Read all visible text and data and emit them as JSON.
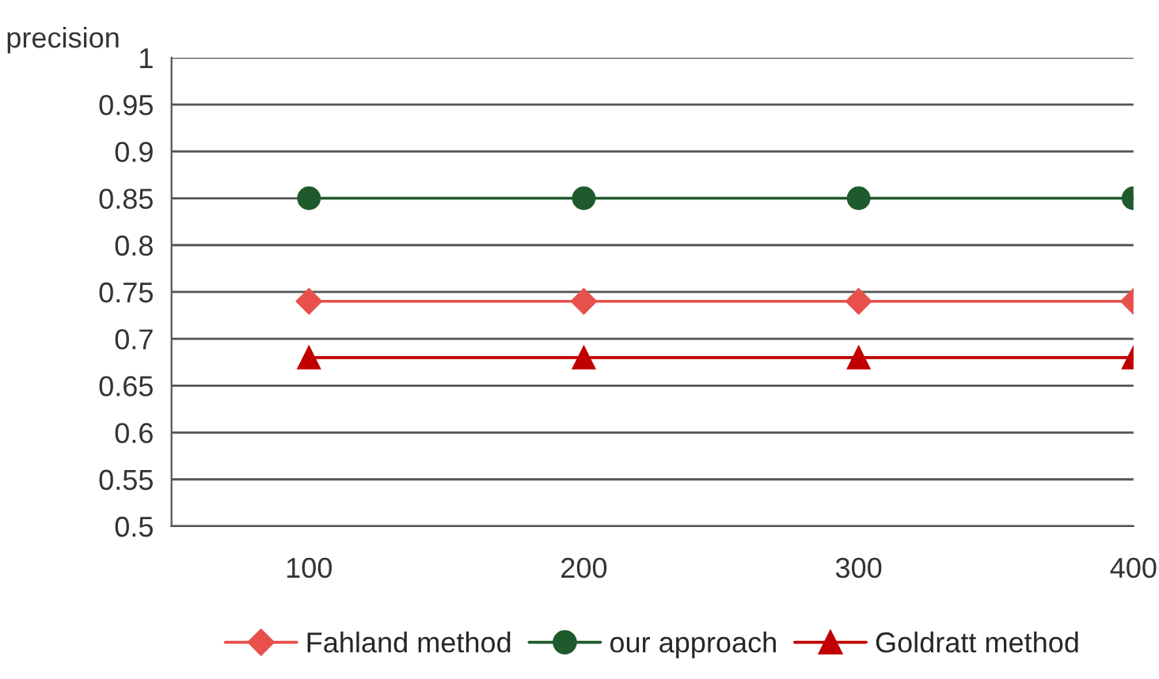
{
  "chart_data": {
    "type": "line",
    "ylabel": "precision",
    "categories": [
      "100",
      "200",
      "300",
      "400"
    ],
    "series": [
      {
        "name": "Fahland method",
        "color": "#e8504c",
        "values": [
          0.74,
          0.74,
          0.74,
          0.74
        ],
        "marker": "diamond"
      },
      {
        "name": "our approach",
        "color": "#1f5a2c",
        "values": [
          0.85,
          0.85,
          0.85,
          0.85
        ],
        "marker": "circle"
      },
      {
        "name": "Goldratt method",
        "color": "#c00000",
        "values": [
          0.68,
          0.68,
          0.68,
          0.68
        ],
        "marker": "triangle"
      }
    ],
    "ylim": [
      0.5,
      1
    ],
    "yticks": [
      0.5,
      0.55,
      0.6,
      0.65,
      0.7,
      0.75,
      0.8,
      0.85,
      0.9,
      0.95,
      1
    ],
    "grid": "y",
    "legend": "bottom",
    "line_style": "solid"
  }
}
